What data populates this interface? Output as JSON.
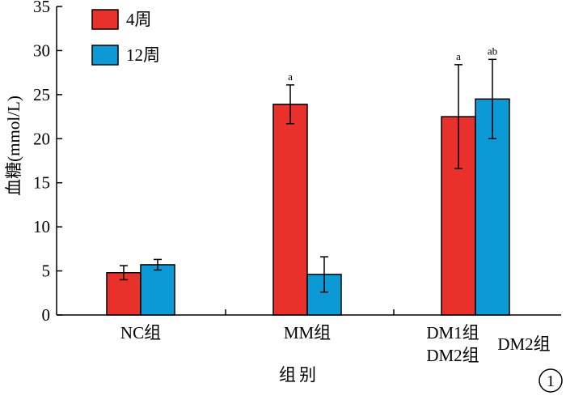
{
  "chart_data": {
    "type": "bar",
    "ylabel": "血糖(mmol/L)",
    "xlabel": "组别",
    "ylim": [
      0,
      35
    ],
    "yticks": [
      0,
      5,
      10,
      15,
      20,
      25,
      30,
      35
    ],
    "grid": false,
    "legend_position": "top-left",
    "categories": [
      "NC组",
      "MM组",
      "DM1组"
    ],
    "extra_category_labels": [
      "DM2组",
      "DM2组"
    ],
    "series": [
      {
        "name": "4周",
        "color": "#e8312a",
        "values": [
          4.8,
          23.9,
          22.5
        ],
        "errors": [
          0.8,
          2.2,
          5.9
        ],
        "annotations": [
          "",
          "a",
          "a"
        ]
      },
      {
        "name": "12周",
        "color": "#0c9ad6",
        "values": [
          5.7,
          4.6,
          24.5
        ],
        "errors": [
          0.6,
          2.0,
          4.5
        ],
        "annotations": [
          "",
          "",
          "ab"
        ]
      }
    ],
    "panel_label": "1"
  }
}
